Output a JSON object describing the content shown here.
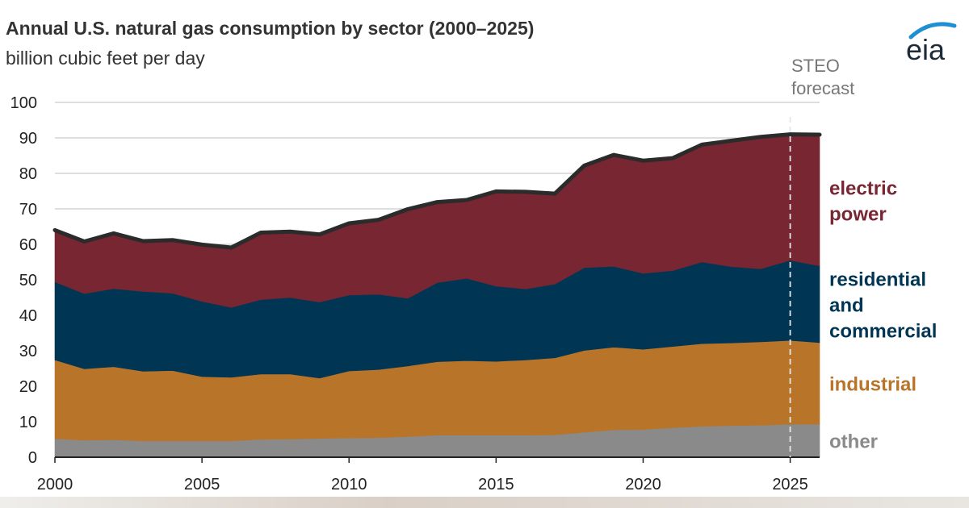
{
  "chart_data": {
    "type": "area",
    "stacked": true,
    "title": "Annual U.S. natural gas consumption by sector (2000–2025)",
    "subtitle": "billion cubic feet per day",
    "logo_text": "eia",
    "forecast_label": [
      "STEO",
      "forecast"
    ],
    "forecast_start": 2025,
    "xlim": [
      2000,
      2026
    ],
    "ylim": [
      0,
      100
    ],
    "x_ticks": [
      2000,
      2005,
      2010,
      2015,
      2020,
      2025
    ],
    "y_ticks": [
      0,
      10,
      20,
      30,
      40,
      50,
      60,
      70,
      80,
      90,
      100
    ],
    "grid": true,
    "x": [
      2000,
      2001,
      2002,
      2003,
      2004,
      2005,
      2006,
      2007,
      2008,
      2009,
      2010,
      2011,
      2012,
      2013,
      2014,
      2015,
      2016,
      2017,
      2018,
      2019,
      2020,
      2021,
      2022,
      2023,
      2024,
      2025,
      2026
    ],
    "series": [
      {
        "name": "other",
        "label_lines": [
          "other"
        ],
        "color": "#8a8a8a",
        "values": [
          5.2,
          4.8,
          4.9,
          4.6,
          4.6,
          4.6,
          4.6,
          5.0,
          5.1,
          5.3,
          5.4,
          5.5,
          5.8,
          6.2,
          6.2,
          6.2,
          6.2,
          6.3,
          7.0,
          7.7,
          7.8,
          8.3,
          8.7,
          8.9,
          9.0,
          9.3,
          9.3
        ]
      },
      {
        "name": "industrial",
        "label_lines": [
          "industrial"
        ],
        "color": "#b8752a",
        "values": [
          22.2,
          20.1,
          20.6,
          19.6,
          19.8,
          18.1,
          17.9,
          18.4,
          18.3,
          17.0,
          18.9,
          19.2,
          19.9,
          20.7,
          21.0,
          20.8,
          21.2,
          21.7,
          23.1,
          23.3,
          22.6,
          22.9,
          23.3,
          23.3,
          23.5,
          23.6,
          23.0
        ]
      },
      {
        "name": "residential and commercial",
        "label_lines": [
          "residential",
          "and",
          "commercial"
        ],
        "color": "#003654",
        "values": [
          22.0,
          21.2,
          22.0,
          22.5,
          21.8,
          21.2,
          19.7,
          21.0,
          21.6,
          21.4,
          21.4,
          21.2,
          19.1,
          22.3,
          23.2,
          21.2,
          20.0,
          20.8,
          23.3,
          22.8,
          21.4,
          21.4,
          23.0,
          21.5,
          20.6,
          22.6,
          21.6
        ]
      },
      {
        "name": "electric power",
        "label_lines": [
          "electric",
          "power"
        ],
        "color": "#772632",
        "values": [
          14.6,
          14.7,
          15.6,
          14.2,
          15.0,
          16.0,
          16.9,
          18.9,
          18.6,
          19.1,
          20.2,
          21.0,
          25.1,
          22.7,
          22.1,
          26.7,
          27.4,
          25.5,
          28.8,
          31.4,
          31.8,
          31.7,
          33.1,
          35.5,
          37.2,
          35.5,
          37.0
        ]
      }
    ]
  }
}
